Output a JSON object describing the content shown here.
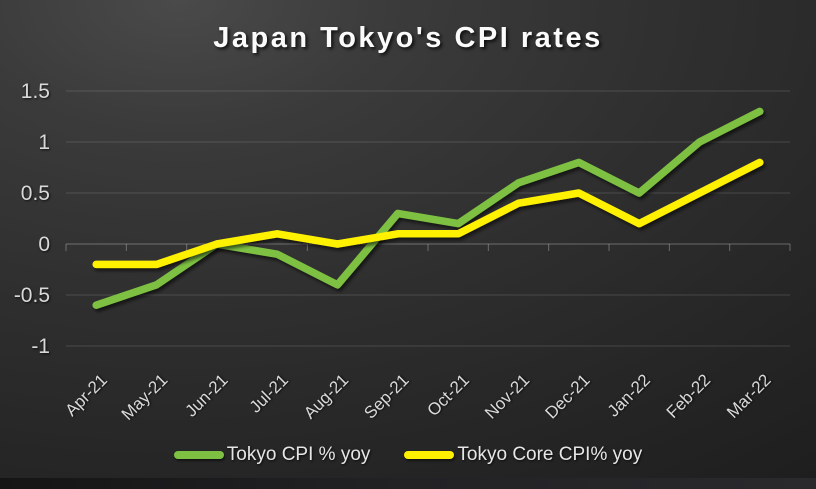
{
  "title": "Japan Tokyo's CPI rates",
  "chart_data": {
    "type": "line",
    "title": "Japan Tokyo's CPI rates",
    "categories": [
      "Apr-21",
      "May-21",
      "Jun-21",
      "Jul-21",
      "Aug-21",
      "Sep-21",
      "Oct-21",
      "Nov-21",
      "Dec-21",
      "Jan-22",
      "Feb-22",
      "Mar-22"
    ],
    "series": [
      {
        "name": "Tokyo CPI % yoy",
        "color": "#7ec142",
        "values": [
          -0.6,
          -0.4,
          0,
          -0.1,
          -0.4,
          0.3,
          0.2,
          0.6,
          0.8,
          0.5,
          1.0,
          1.3
        ]
      },
      {
        "name": "Tokyo Core CPI% yoy",
        "color": "#fff100",
        "values": [
          -0.2,
          -0.2,
          0,
          0.1,
          0.0,
          0.1,
          0.1,
          0.4,
          0.5,
          0.2,
          0.5,
          0.8
        ]
      }
    ],
    "ylim": [
      -1,
      1.5
    ],
    "yticks": [
      1.5,
      1,
      0.5,
      0,
      -0.5,
      -1
    ],
    "ytick_labels": [
      "1.5",
      "1",
      "0.5",
      "0",
      "-0.5",
      "-1"
    ],
    "xlabel": "",
    "ylabel": "",
    "grid": true,
    "x_label_rotation": -45,
    "legend_position": "bottom",
    "colors": {
      "background_dark": "#2d2d2d",
      "gridline": "rgba(255,255,255,0.14)",
      "zero_axis": "rgba(255,255,255,0.30)",
      "axis_text": "#d9d9d9",
      "title_text": "#fbfbfb"
    }
  }
}
